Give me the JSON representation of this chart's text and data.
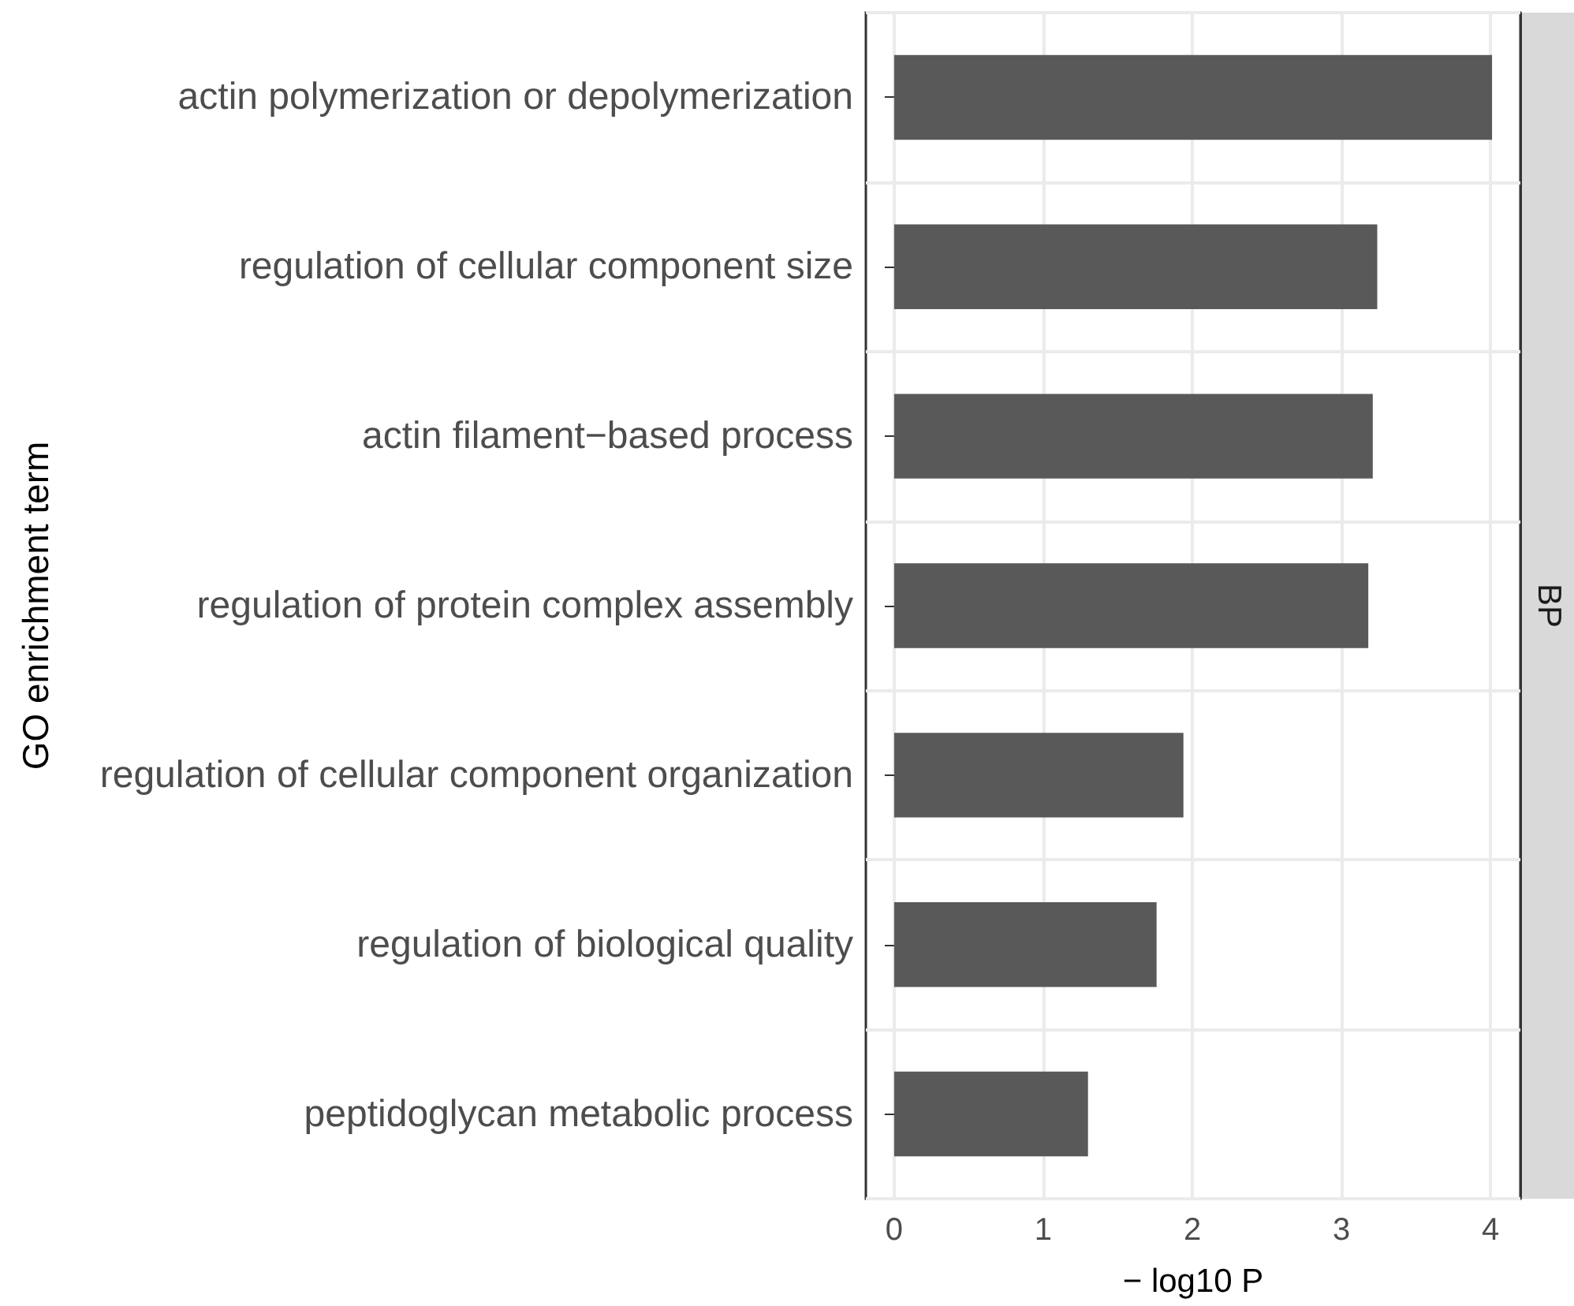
{
  "chart_data": {
    "type": "bar",
    "orientation": "horizontal",
    "xlabel": "− log10 P",
    "ylabel": "GO enrichment term",
    "categories": [
      "actin polymerization or depolymerization",
      "regulation of cellular component size",
      "actin filament−based process",
      "regulation of protein complex assembly",
      "regulation of cellular component organization",
      "regulation of biological quality",
      "peptidoglycan metabolic process"
    ],
    "values": [
      4.01,
      3.24,
      3.21,
      3.18,
      1.94,
      1.76,
      1.3
    ],
    "color": "#595959",
    "xlim": [
      -0.19,
      4.2
    ],
    "xticks": [
      0,
      1,
      2,
      3,
      4
    ],
    "grid": true,
    "annotations": [
      "BP"
    ]
  }
}
